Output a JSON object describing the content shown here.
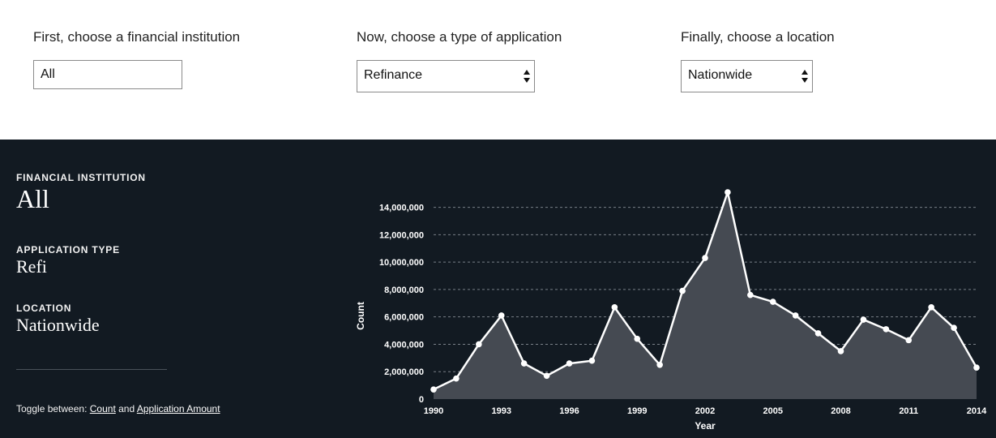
{
  "filters": {
    "institution": {
      "label": "First, choose a financial institution",
      "value": "All"
    },
    "application": {
      "label": "Now, choose a type of application",
      "value": "Refinance"
    },
    "location": {
      "label": "Finally, choose a location",
      "value": "Nationwide"
    }
  },
  "summary": {
    "institution_label": "FINANCIAL INSTITUTION",
    "institution_value": "All",
    "application_label": "APPLICATION TYPE",
    "application_value": "Refi",
    "location_label": "LOCATION",
    "location_value": "Nationwide"
  },
  "toggle": {
    "prefix": "Toggle between:",
    "count_link": "Count",
    "and": "and",
    "amount_link": "Application Amount"
  },
  "colors": {
    "panel_bg": "#121a22",
    "area_fill": "#454a52",
    "line": "#ffffff",
    "grid": "#7a8088"
  },
  "icons": {
    "select": "updown-arrows-icon"
  },
  "chart_data": {
    "type": "area",
    "xlabel": "Year",
    "ylabel": "Count",
    "x": [
      1990,
      1991,
      1992,
      1993,
      1994,
      1995,
      1996,
      1997,
      1998,
      1999,
      2000,
      2001,
      2002,
      2003,
      2004,
      2005,
      2006,
      2007,
      2008,
      2009,
      2010,
      2011,
      2012,
      2013,
      2014
    ],
    "values": [
      700000,
      1500000,
      4000000,
      6100000,
      2600000,
      1700000,
      2600000,
      2800000,
      6700000,
      4400000,
      2500000,
      7900000,
      10300000,
      15100000,
      7600000,
      7100000,
      6100000,
      4800000,
      3500000,
      5800000,
      5100000,
      4300000,
      6700000,
      5200000,
      2300000
    ],
    "xticks": [
      "1990",
      "1993",
      "1996",
      "1999",
      "2002",
      "2005",
      "2008",
      "2011",
      "2014"
    ],
    "yticks": [
      "0",
      "2,000,000",
      "4,000,000",
      "6,000,000",
      "8,000,000",
      "10,000,000",
      "12,000,000",
      "14,000,000"
    ],
    "ylim": [
      0,
      15100000
    ],
    "xlim": [
      1990,
      2014
    ],
    "grid": true
  }
}
